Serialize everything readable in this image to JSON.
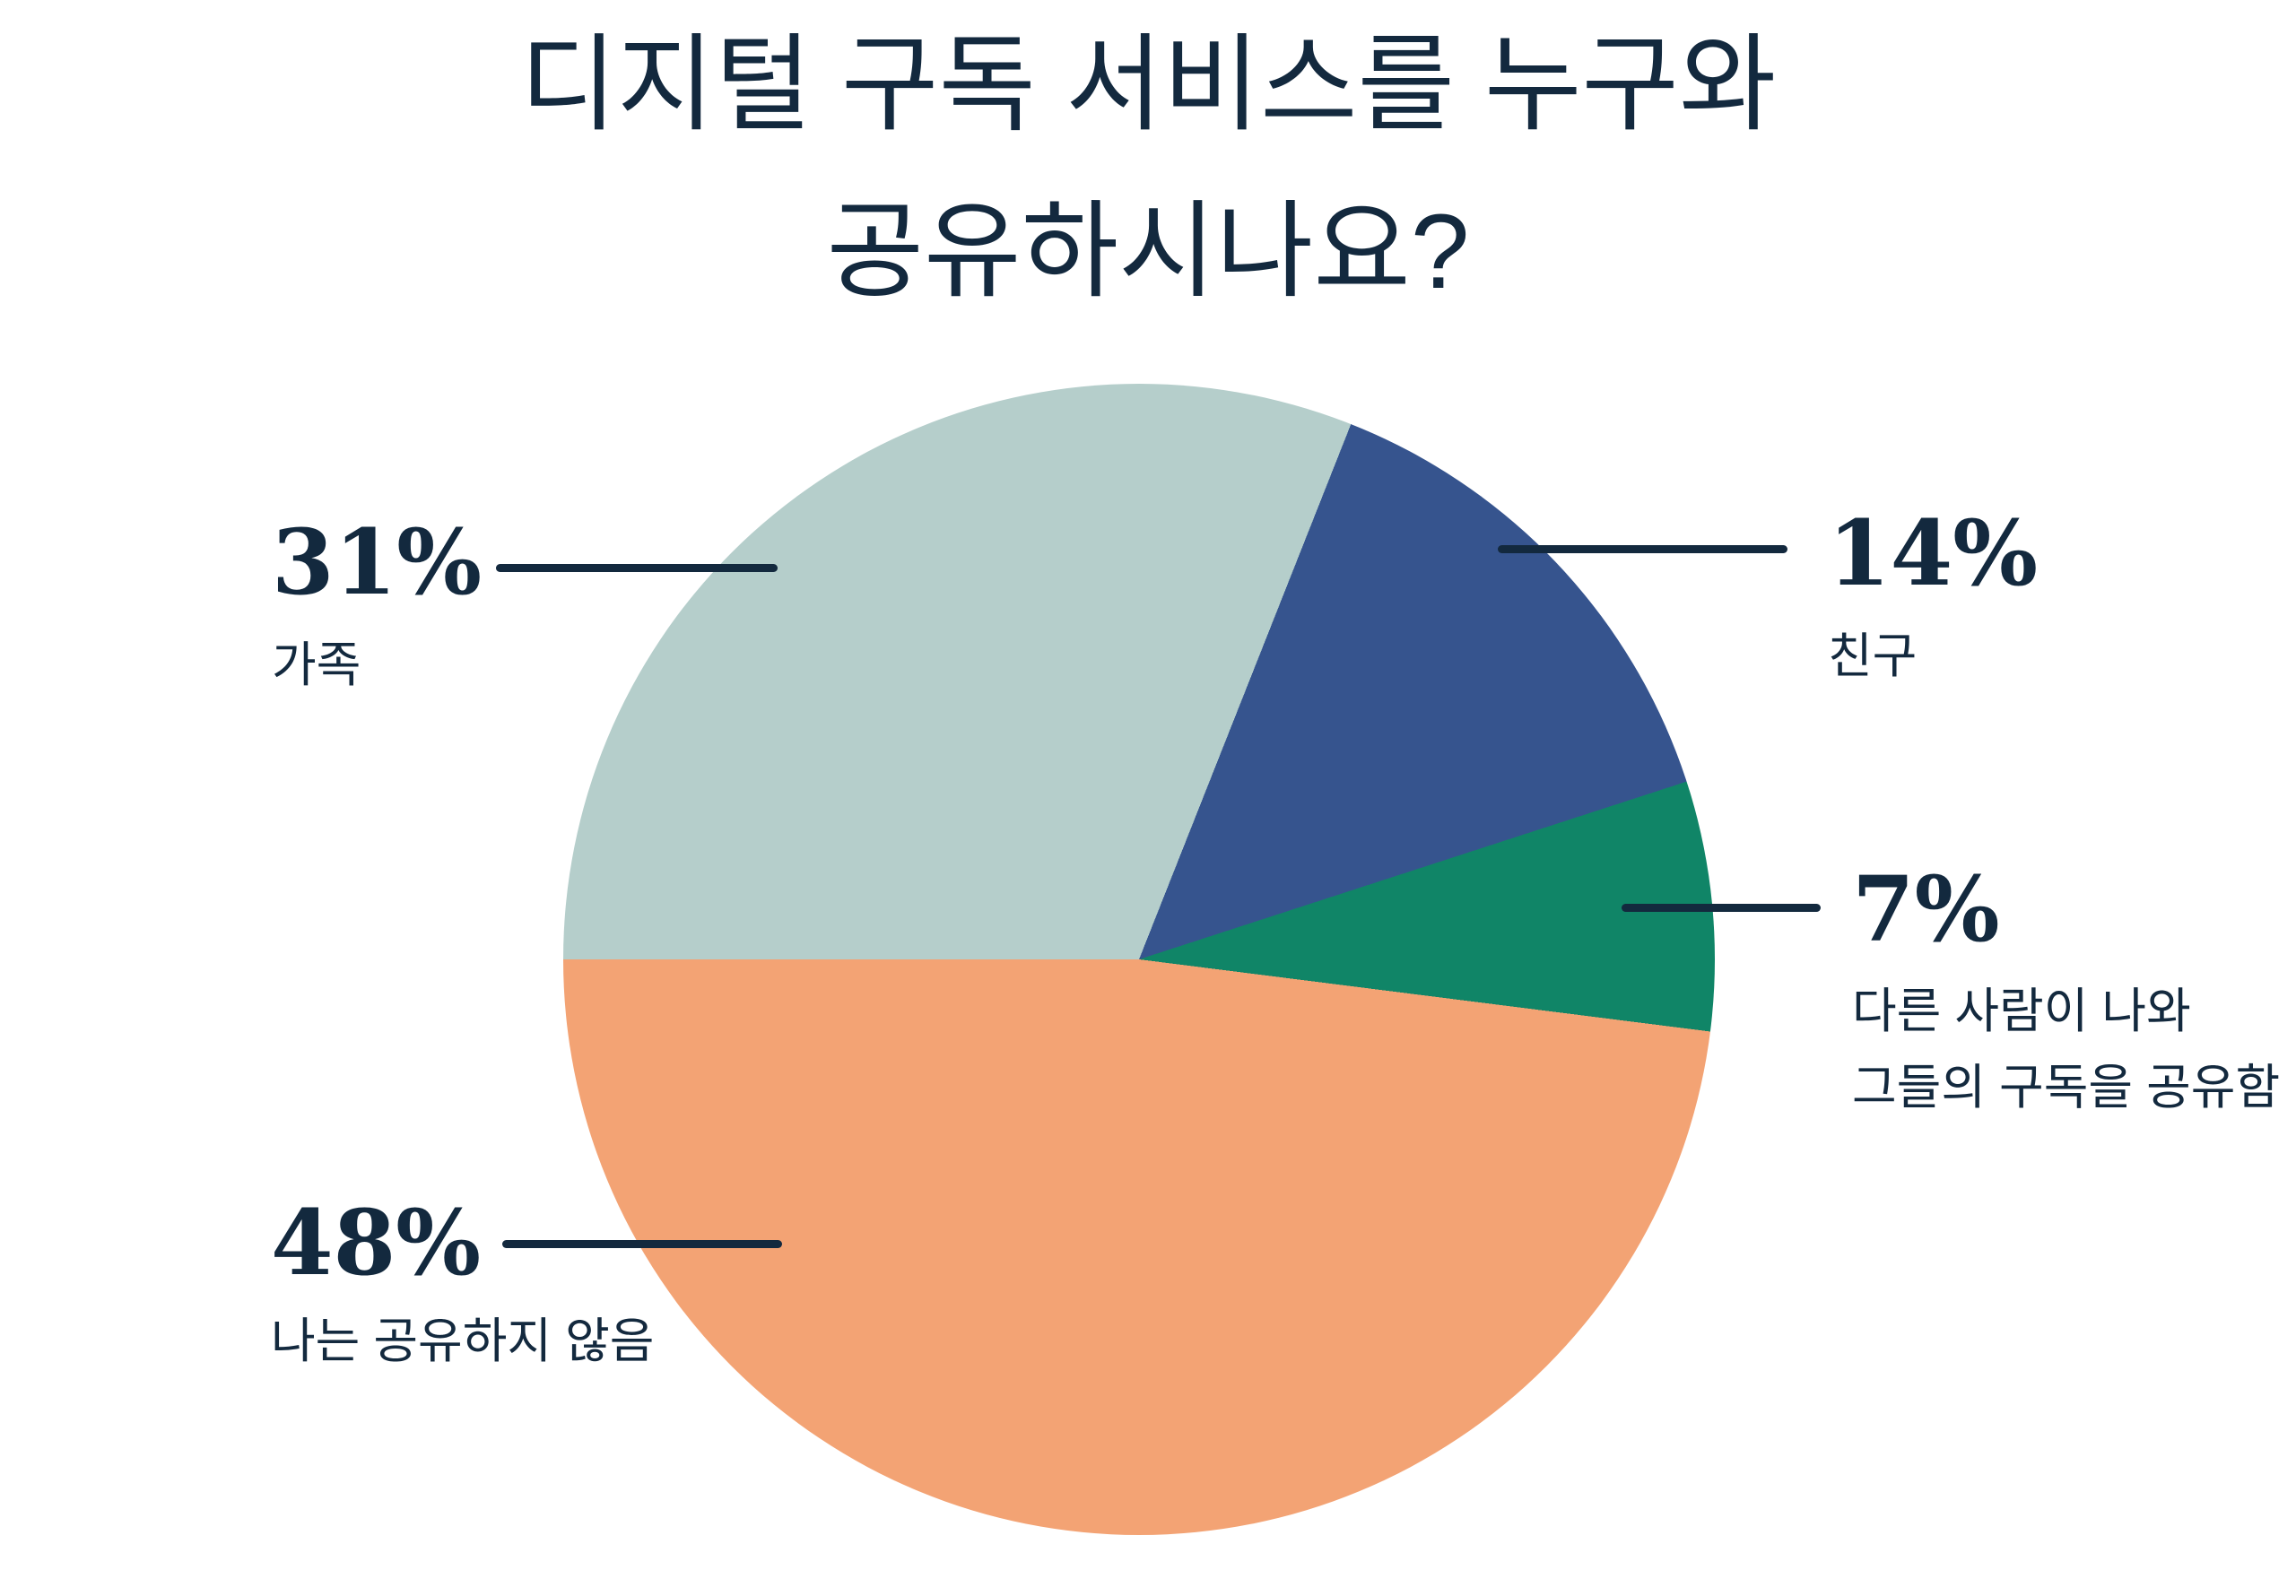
{
  "title": {
    "line1": "디지털 구독 서비스를 누구와",
    "line2": "공유하시나요?"
  },
  "chart_data": {
    "type": "pie",
    "title": "디지털 구독 서비스를 누구와 공유하시나요?",
    "start_angle_css_deg": 270,
    "direction": "clockwise",
    "legend_position": "callout-labels",
    "slices": [
      {
        "label": "가족",
        "value_pct": 31,
        "color": "#b5cecb"
      },
      {
        "label": "친구",
        "value_pct": 14,
        "color": "#36548e"
      },
      {
        "label": "다른 사람이 나와 그들의 구독을 공유함",
        "value_pct": 7,
        "color": "#108567"
      },
      {
        "label": "나는 공유하지 않음",
        "value_pct": 48,
        "color": "#f3a374"
      }
    ]
  },
  "callouts": {
    "family": {
      "pct": "31%",
      "label": "가족"
    },
    "friends": {
      "pct": "14%",
      "label": "친구"
    },
    "others": {
      "pct": "7%",
      "label": "다른 사람이 나와\n그들의 구독을 공유함"
    },
    "noshare": {
      "pct": "48%",
      "label": "나는 공유하지 않음"
    }
  },
  "colors": {
    "background": "#ffffff",
    "text_and_lines_navy": "#13293e",
    "slice_family_lightblue": "#b5cecb",
    "slice_friends_blue": "#36548e",
    "slice_others_green": "#108567",
    "slice_noshare_orange": "#f3a374"
  }
}
